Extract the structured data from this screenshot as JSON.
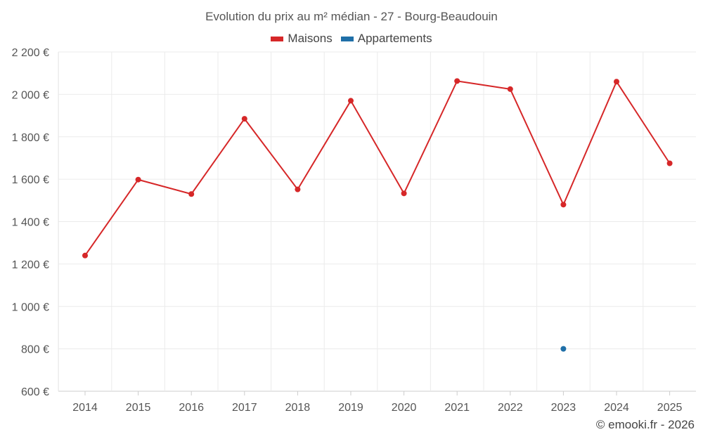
{
  "chart_data": {
    "type": "line",
    "title": "Evolution du prix au m² médian - 27 - Bourg-Beaudouin",
    "xlabel": "",
    "ylabel": "",
    "categories": [
      "2014",
      "2015",
      "2016",
      "2017",
      "2018",
      "2019",
      "2020",
      "2021",
      "2022",
      "2023",
      "2024",
      "2025"
    ],
    "series": [
      {
        "name": "Maisons",
        "color": "#d62728",
        "values": [
          1240,
          1598,
          1530,
          1885,
          1552,
          1970,
          1533,
          2063,
          2025,
          1480,
          2060,
          1675
        ]
      },
      {
        "name": "Appartements",
        "color": "#1f6fa8",
        "values": [
          null,
          null,
          null,
          null,
          null,
          null,
          null,
          null,
          null,
          800,
          null,
          null
        ]
      }
    ],
    "ylim": [
      600,
      2200
    ],
    "yticks": [
      600,
      800,
      1000,
      1200,
      1400,
      1600,
      1800,
      2000,
      2200
    ],
    "ytick_labels": [
      "600 €",
      "800 €",
      "1 000 €",
      "1 200 €",
      "1 400 €",
      "1 600 €",
      "1 800 €",
      "2 000 €",
      "2 200 €"
    ],
    "grid": true,
    "legend_position": "top-center"
  },
  "footer": {
    "credit": "© emooki.fr - 2026"
  }
}
